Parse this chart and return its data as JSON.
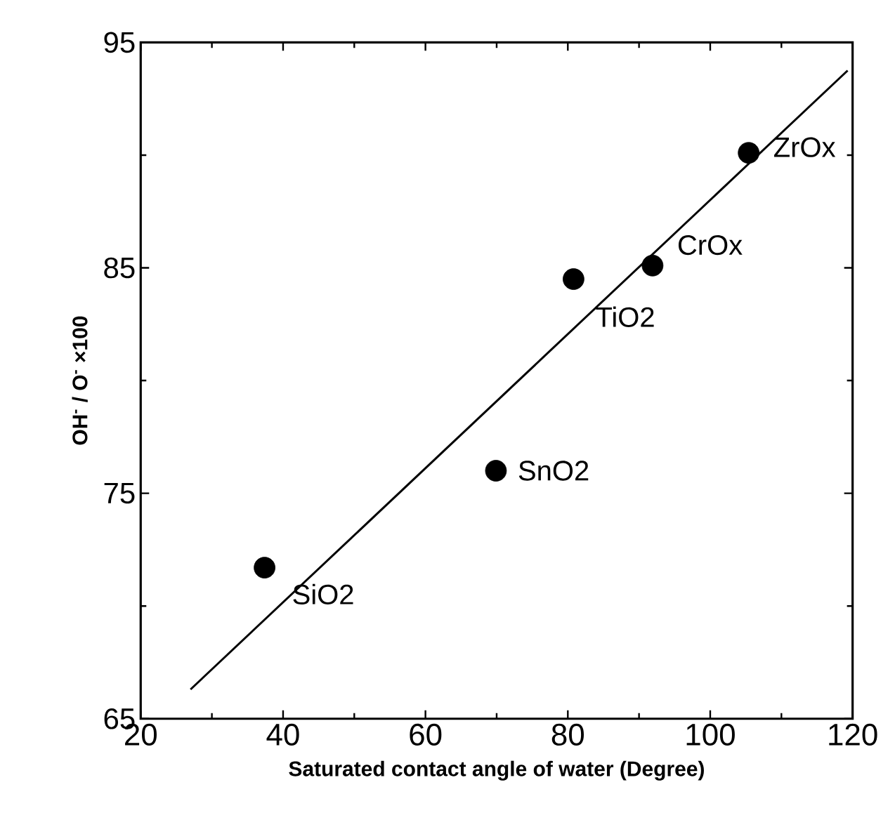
{
  "chart_data": {
    "type": "scatter",
    "xlabel": "Saturated contact angle of water   (Degree)",
    "ylabel": "OH$^{-}$ / O$^{-}$  ×100",
    "xlim": [
      20,
      120
    ],
    "ylim": [
      65,
      95
    ],
    "xticks": [
      20,
      40,
      60,
      80,
      100,
      120
    ],
    "yticks": [
      65,
      75,
      85,
      95
    ],
    "marker": "circle",
    "series": [
      {
        "color": "#000000",
        "x": [
          37.4,
          69.9,
          80.8,
          91.9,
          105.4
        ],
        "values": [
          71.7,
          76.0,
          84.5,
          85.1,
          90.1
        ]
      },
      {
        "type": "line",
        "color": "#000000",
        "marker": "none",
        "line_style": "solid",
        "x": [
          27.0,
          119.3
        ],
        "values": [
          66.3,
          93.75
        ]
      }
    ],
    "annotations": [
      {
        "text": "SiO2",
        "x": 37.4,
        "y": 71.7
      },
      {
        "text": "SnO2",
        "x": 69.9,
        "y": 76.0
      },
      {
        "text": "TiO2",
        "x": 80.8,
        "y": 84.5
      },
      {
        "text": "CrOx",
        "x": 91.9,
        "y": 85.1
      },
      {
        "text": "ZrOx",
        "x": 105.4,
        "y": 90.1
      }
    ]
  }
}
